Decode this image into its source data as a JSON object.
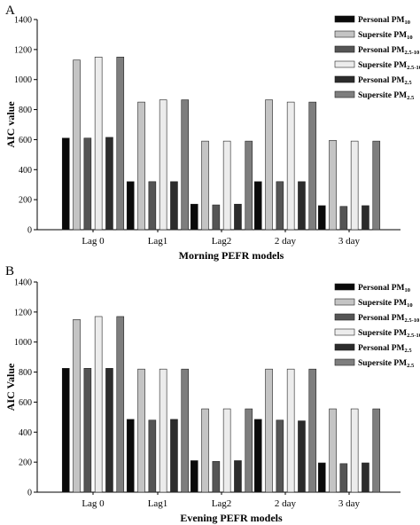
{
  "chart_data": [
    {
      "panel_label": "A",
      "type": "bar",
      "xlabel": "Morning PEFR models",
      "ylabel": "AIC value",
      "ylim": [
        0,
        1400
      ],
      "yticks": [
        0,
        200,
        400,
        600,
        800,
        1000,
        1200,
        1400
      ],
      "categories": [
        "Lag 0",
        "Lag1",
        "Lag2",
        "2 day",
        "3 day"
      ],
      "legend_position": "top-right",
      "series": [
        {
          "name": "Personal PM",
          "sub": "10",
          "color": "#0a0a0a",
          "values": [
            610,
            320,
            170,
            320,
            160
          ]
        },
        {
          "name": "Supersite PM",
          "sub": "10",
          "color": "#c4c4c4",
          "values": [
            1130,
            850,
            590,
            865,
            595
          ]
        },
        {
          "name": "Personal PM",
          "sub": "2.5-10",
          "color": "#555555",
          "values": [
            610,
            320,
            165,
            320,
            155
          ]
        },
        {
          "name": "Supersite PM",
          "sub": "2.5-10",
          "color": "#ececec",
          "values": [
            1150,
            865,
            590,
            850,
            590
          ]
        },
        {
          "name": "Personal  PM",
          "sub": "2.5",
          "color": "#2c2c2c",
          "values": [
            615,
            320,
            170,
            320,
            160
          ]
        },
        {
          "name": "Supersite PM",
          "sub": "2.5",
          "color": "#7e7e7e",
          "values": [
            1150,
            865,
            590,
            850,
            590
          ]
        }
      ]
    },
    {
      "panel_label": "B",
      "type": "bar",
      "xlabel": "Evening PEFR models",
      "ylabel": "AIC Value",
      "ylim": [
        0,
        1400
      ],
      "yticks": [
        0,
        200,
        400,
        600,
        800,
        1000,
        1200,
        1400
      ],
      "categories": [
        "Lag 0",
        "Lag1",
        "Lag2",
        "2 day",
        "3 day"
      ],
      "legend_position": "top-right",
      "series": [
        {
          "name": "Personal PM",
          "sub": "10",
          "color": "#0a0a0a",
          "values": [
            825,
            485,
            210,
            485,
            195
          ]
        },
        {
          "name": "Supersite PM",
          "sub": "10",
          "color": "#c4c4c4",
          "values": [
            1150,
            820,
            555,
            820,
            555
          ]
        },
        {
          "name": "Personal PM",
          "sub": "2.5-10",
          "color": "#555555",
          "values": [
            825,
            480,
            205,
            480,
            190
          ]
        },
        {
          "name": "Supersite PM",
          "sub": "2.5-10",
          "color": "#ececec",
          "values": [
            1170,
            820,
            555,
            820,
            555
          ]
        },
        {
          "name": "Personal PM",
          "sub": "2.5",
          "color": "#2c2c2c",
          "values": [
            825,
            485,
            210,
            475,
            195
          ]
        },
        {
          "name": "Supersite PM",
          "sub": "2.5",
          "color": "#7e7e7e",
          "values": [
            1170,
            820,
            555,
            820,
            555
          ]
        }
      ]
    }
  ]
}
